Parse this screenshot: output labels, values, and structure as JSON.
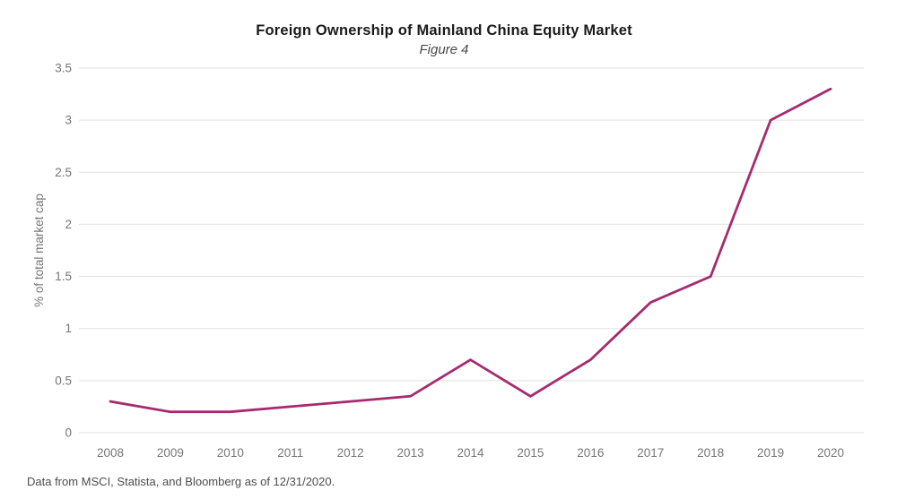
{
  "header": {
    "title": "Foreign Ownership of Mainland China Equity Market",
    "subtitle": "Figure 4"
  },
  "footer": {
    "source_note": "Data from MSCI, Statista, and Bloomberg as of 12/31/2020."
  },
  "chart_data": {
    "type": "line",
    "title": "Foreign Ownership of Mainland China Equity Market",
    "subtitle": "Figure 4",
    "categories": [
      "2008",
      "2009",
      "2010",
      "2011",
      "2012",
      "2013",
      "2014",
      "2015",
      "2016",
      "2017",
      "2018",
      "2019",
      "2020"
    ],
    "series": [
      {
        "name": "Foreign ownership of mainland China equity market",
        "values": [
          0.3,
          0.2,
          0.2,
          0.25,
          0.3,
          0.35,
          0.7,
          0.35,
          0.7,
          1.25,
          1.5,
          3.0,
          3.3
        ],
        "color": "#a62a6f"
      }
    ],
    "xlabel": "",
    "ylabel": "% of total market cap",
    "ylim": [
      0,
      3.5
    ],
    "yticks": [
      "0",
      "0.5",
      "1",
      "1.5",
      "2",
      "2.5",
      "3",
      "3.5"
    ],
    "grid": "horizontal",
    "legend": "none",
    "colors": {
      "line": "#a62a6f",
      "gridline": "#e7e7e7",
      "tick_label": "#757575",
      "title": "#1a1a1a",
      "subtitle": "#4a4a4a",
      "source_note": "#4d4d4d"
    }
  }
}
